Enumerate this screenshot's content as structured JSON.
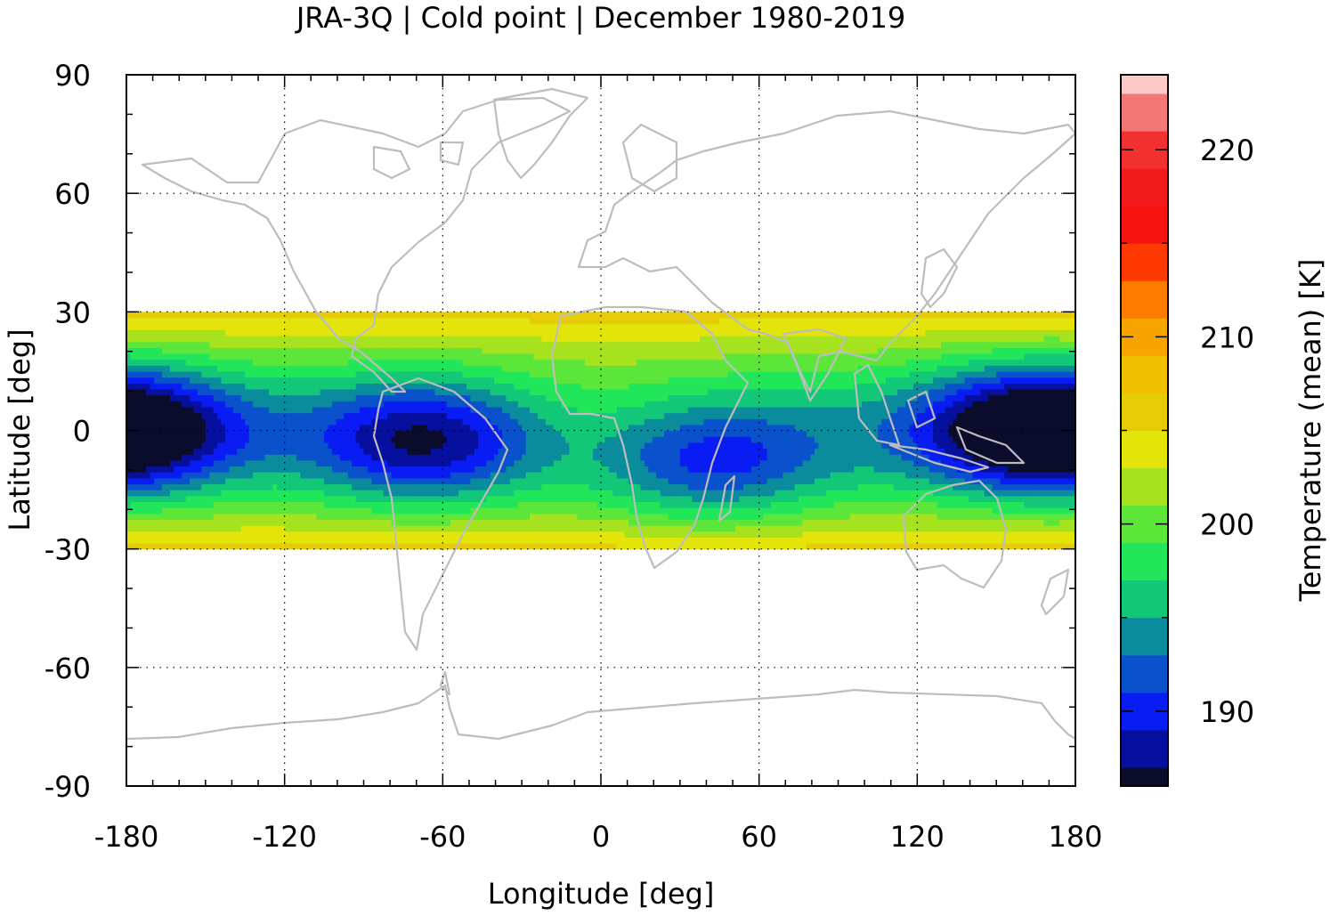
{
  "chart_data": {
    "type": "heatmap",
    "title": "JRA-3Q | Cold point | December 1980-2019",
    "xlabel": "Longitude [deg]",
    "ylabel": "Latitude [deg]",
    "colorbar_label": "Temperature (mean) [K]",
    "xlim": [
      -180,
      180
    ],
    "ylim": [
      -90,
      90
    ],
    "data_lat_range": [
      -30,
      30
    ],
    "x_ticks": [
      -180,
      -120,
      -60,
      0,
      60,
      120,
      180
    ],
    "x_tick_labels": [
      "-180",
      "-120",
      "-60",
      "0",
      "60",
      "120",
      "180"
    ],
    "y_ticks": [
      90,
      60,
      30,
      0,
      -30,
      -60,
      -90
    ],
    "y_tick_labels": [
      "90",
      "60",
      "30",
      "0",
      "-30",
      "-60",
      "-90"
    ],
    "grid": true,
    "colorbar_ticks": [
      190,
      200,
      210,
      220
    ],
    "colorbar_tick_labels": [
      "190",
      "200",
      "210",
      "220"
    ],
    "colorbar_range": [
      186,
      224
    ],
    "colorbar_levels": [
      {
        "from": 186,
        "to": 187,
        "color": "#0b0c2c"
      },
      {
        "from": 187,
        "to": 189,
        "color": "#07109e"
      },
      {
        "from": 189,
        "to": 191,
        "color": "#0a1cf4"
      },
      {
        "from": 191,
        "to": 193,
        "color": "#0a52cc"
      },
      {
        "from": 193,
        "to": 195,
        "color": "#0b8c9c"
      },
      {
        "from": 195,
        "to": 197,
        "color": "#12c878"
      },
      {
        "from": 197,
        "to": 199,
        "color": "#22e65a"
      },
      {
        "from": 199,
        "to": 201,
        "color": "#5ce63a"
      },
      {
        "from": 201,
        "to": 203,
        "color": "#a6e21e"
      },
      {
        "from": 203,
        "to": 205,
        "color": "#e2e40a"
      },
      {
        "from": 205,
        "to": 207,
        "color": "#e6cc06"
      },
      {
        "from": 207,
        "to": 209,
        "color": "#f0c000"
      },
      {
        "from": 209,
        "to": 211,
        "color": "#f8a400"
      },
      {
        "from": 211,
        "to": 213,
        "color": "#fe7a00"
      },
      {
        "from": 213,
        "to": 215,
        "color": "#fe3a00"
      },
      {
        "from": 215,
        "to": 217,
        "color": "#f61210"
      },
      {
        "from": 217,
        "to": 219,
        "color": "#f21a1a"
      },
      {
        "from": 219,
        "to": 221,
        "color": "#f23030"
      },
      {
        "from": 221,
        "to": 223,
        "color": "#f27878"
      },
      {
        "from": 223,
        "to": 224,
        "color": "#fcc8c8"
      }
    ],
    "field_model": {
      "description_only_for_render": false,
      "base_K": 198.5,
      "equator_cold_centres": [
        {
          "lon": 160,
          "lat": 0,
          "temp_min": 186.5
        },
        {
          "lon": -175,
          "lat": 0,
          "temp_min": 186.8
        },
        {
          "lon": -65,
          "lat": -3,
          "temp_min": 187.5
        },
        {
          "lon": 40,
          "lat": -8,
          "temp_min": 189.5
        }
      ]
    }
  }
}
